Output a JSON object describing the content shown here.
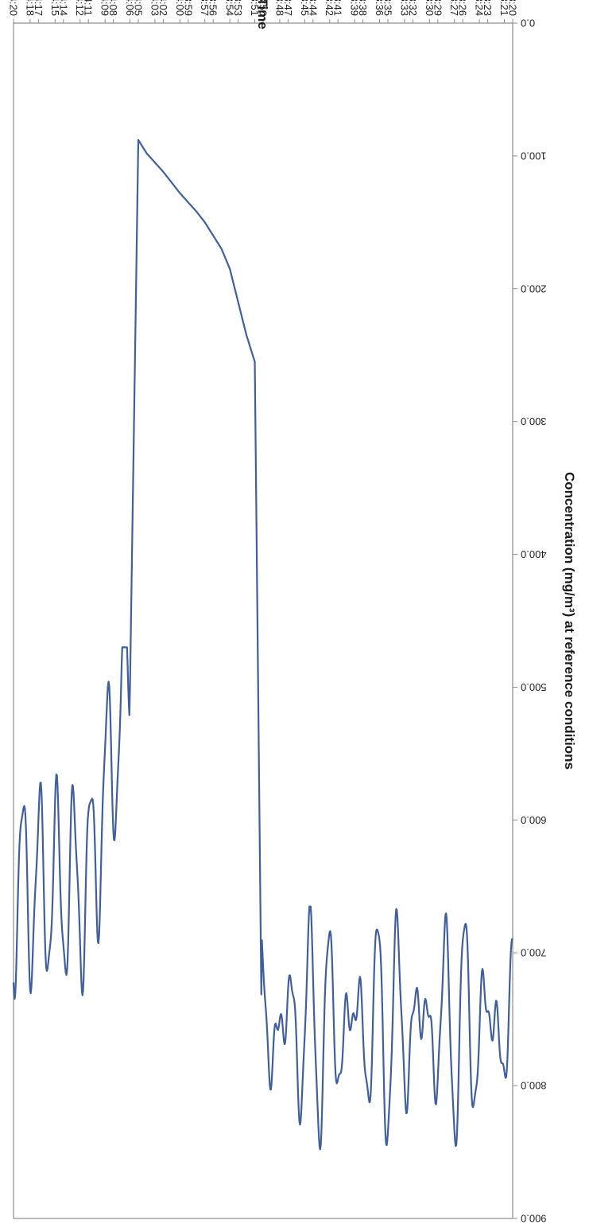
{
  "chart_data": {
    "type": "line",
    "orientation": "rotated-180",
    "xlabel": "Time",
    "ylabel": "Concentration (mg/m³) at reference conditions",
    "ylim": [
      0,
      900
    ],
    "y_ticks": [
      "0.0",
      "100.0",
      "200.0",
      "300.0",
      "400.0",
      "500.0",
      "600.0",
      "700.0",
      "800.0",
      "900.0"
    ],
    "x_ticks": [
      "13:20",
      "13:21",
      "13:23",
      "13:24",
      "13:26",
      "13:27",
      "13:29",
      "13:30",
      "13:32",
      "13:33",
      "13:35",
      "13:36",
      "13:38",
      "13:39",
      "13:41",
      "13:42",
      "13:44",
      "13:45",
      "13:47",
      "13:48",
      "13:50",
      "13:51",
      "13:53",
      "13:54",
      "13:56",
      "13:57",
      "13:59",
      "14:00",
      "14:02",
      "14:03",
      "14:05",
      "14:06",
      "14:08",
      "14:09",
      "14:11",
      "14:12",
      "14:14",
      "14:15",
      "14:17",
      "14:18",
      "14:20"
    ],
    "grid": false,
    "legend": "none",
    "series_color": "#3f5f9e",
    "series": [
      {
        "x": [
          "13:20",
          "13:21",
          "13:22",
          "13:23",
          "13:24",
          "13:25",
          "13:26",
          "13:27",
          "13:28",
          "13:29",
          "13:30",
          "13:31",
          "13:32",
          "13:33",
          "13:34",
          "13:35",
          "13:36",
          "13:37",
          "13:38",
          "13:39",
          "13:40",
          "13:41",
          "13:42",
          "13:43",
          "13:44",
          "13:45",
          "13:46",
          "13:47",
          "13:48",
          "13:49",
          "13:50",
          "13:51",
          "13:52",
          "13:53",
          "13:54",
          "13:55",
          "13:56",
          "13:57",
          "13:58",
          "13:59",
          "14:00",
          "14:01",
          "14:02",
          "14:03",
          "14:04",
          "14:05",
          "14:06",
          "14:07",
          "14:08",
          "14:09",
          "14:10",
          "14:11",
          "14:12",
          "14:13",
          "14:14",
          "14:15",
          "14:16",
          "14:17",
          "14:18",
          "14:19",
          "14:20"
        ],
        "y": [
          760,
          740,
          750,
          745,
          755,
          750,
          745,
          760,
          740,
          750,
          745,
          755,
          750,
          760,
          745,
          750,
          740,
          755,
          745,
          750,
          740,
          745,
          750,
          745,
          740,
          745,
          740,
          745,
          740,
          745,
          740,
          255,
          235,
          210,
          185,
          170,
          160,
          150,
          142,
          135,
          128,
          120,
          112,
          105,
          98,
          88,
          500,
          600,
          620,
          630,
          640,
          650,
          660,
          665,
          670,
          680,
          685,
          690,
          695,
          690,
          690
        ],
        "fluctuation": {
          "13:20-13:50": "660 to 850",
          "14:06-14:20": "470 to 790"
        }
      }
    ]
  }
}
